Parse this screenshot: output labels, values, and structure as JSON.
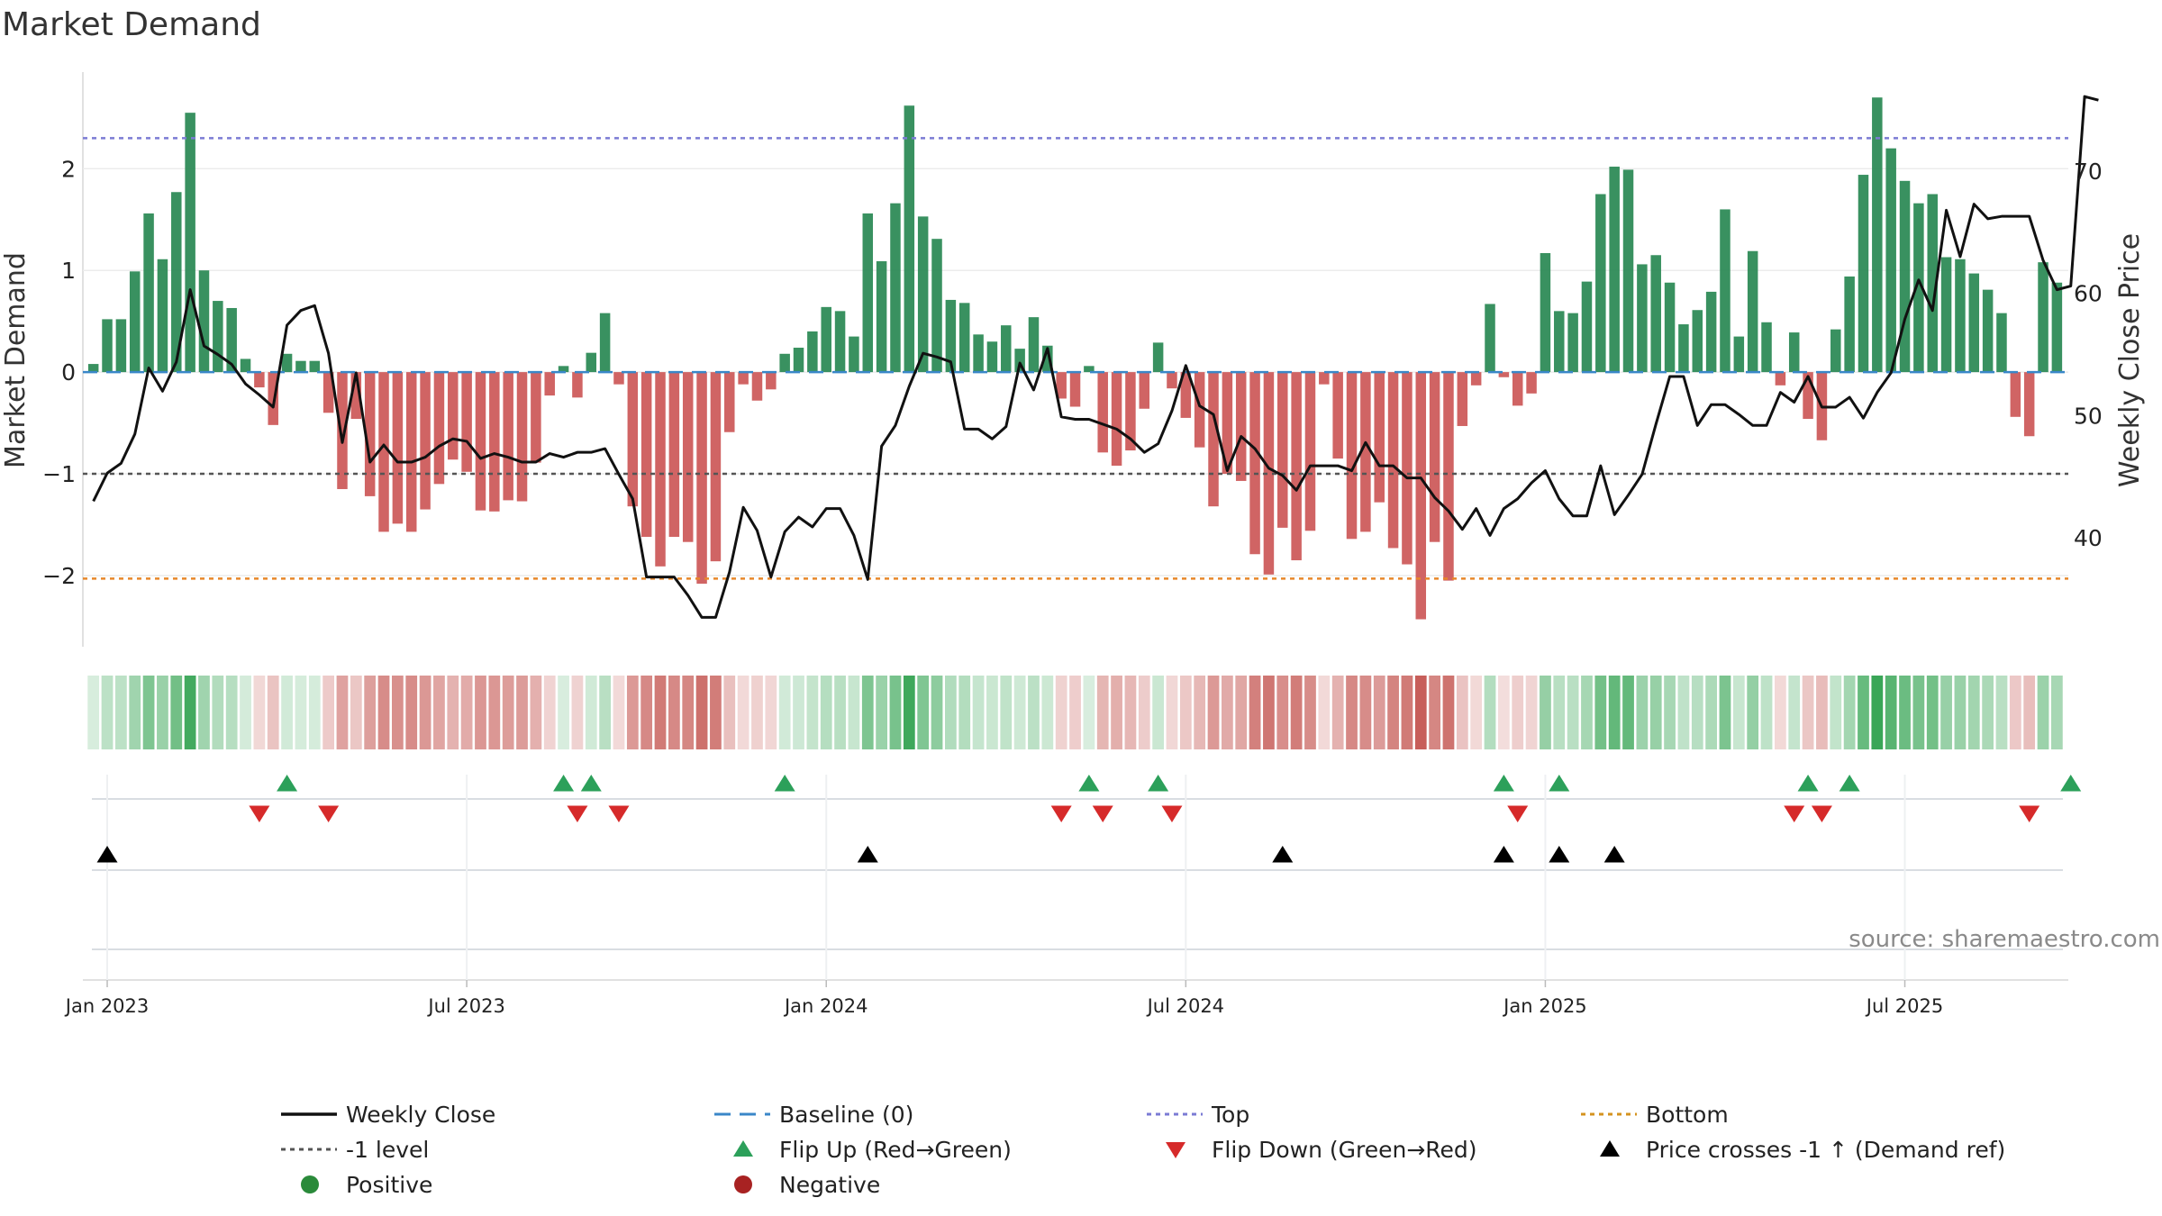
{
  "chart_data": {
    "type": "bar",
    "title": "Market Demand",
    "ylabel": "Market Demand",
    "y2label": "Weekly Close Price",
    "ylim": [
      -2.7,
      2.95
    ],
    "y2lim": [
      31.1,
      78.1
    ],
    "yticks": [
      2,
      1,
      0,
      -1,
      -2
    ],
    "yticklabels": [
      "2",
      "1",
      "0",
      "−1",
      "−2"
    ],
    "y2ticks": [
      70,
      60,
      50,
      40
    ],
    "y2ticklabels": [
      "70",
      "60",
      "50",
      "40"
    ],
    "xticklabels": [
      "Jan 2023",
      "Jul 2023",
      "Jan 2024",
      "Jul 2024",
      "Jan 2025",
      "Jul 2025"
    ],
    "xtick_week_index": [
      1.5,
      27.5,
      53.5,
      79.5,
      105.5,
      131.5
    ],
    "reference_lines": [
      {
        "name": "Top",
        "value": 2.3,
        "color": "#7b7bd4"
      },
      {
        "name": "-1 level",
        "value": -1,
        "color": "#555555"
      },
      {
        "name": "Bottom",
        "value": -2.03,
        "color": "#e8872a"
      },
      {
        "name": "Baseline (0)",
        "value": 0,
        "color": "#3a87c8"
      }
    ],
    "series": [
      {
        "name": "Market Demand",
        "values": [
          0.08,
          0.52,
          0.52,
          0.99,
          1.56,
          1.11,
          1.77,
          2.55,
          1.0,
          0.7,
          0.63,
          0.13,
          -0.15,
          -0.52,
          0.18,
          0.11,
          0.11,
          -0.4,
          -1.15,
          -0.46,
          -1.22,
          -1.57,
          -1.49,
          -1.57,
          -1.35,
          -1.1,
          -0.86,
          -0.98,
          -1.36,
          -1.37,
          -1.26,
          -1.27,
          -0.89,
          -0.23,
          0.06,
          -0.25,
          0.19,
          0.58,
          -0.12,
          -1.32,
          -1.62,
          -1.91,
          -1.62,
          -1.67,
          -2.08,
          -1.86,
          -0.59,
          -0.12,
          -0.28,
          -0.17,
          0.18,
          0.24,
          0.4,
          0.64,
          0.6,
          0.35,
          1.56,
          1.09,
          1.66,
          2.62,
          1.53,
          1.31,
          0.71,
          0.68,
          0.37,
          0.3,
          0.46,
          0.23,
          0.54,
          0.26,
          -0.26,
          -0.34,
          0.06,
          -0.79,
          -0.92,
          -0.77,
          -0.36,
          0.29,
          -0.16,
          -0.45,
          -0.74,
          -1.32,
          -1.0,
          -1.07,
          -1.79,
          -1.99,
          -1.53,
          -1.85,
          -1.56,
          -0.12,
          -0.85,
          -1.64,
          -1.57,
          -1.28,
          -1.73,
          -1.89,
          -2.43,
          -1.67,
          -2.05,
          -0.53,
          -0.13,
          0.67,
          -0.05,
          -0.33,
          -0.21,
          1.17,
          0.6,
          0.58,
          0.89,
          1.75,
          2.02,
          1.99,
          1.06,
          1.15,
          0.88,
          0.47,
          0.61,
          0.79,
          1.6,
          0.35,
          1.19,
          0.49,
          -0.13,
          0.39,
          -0.46,
          -0.67,
          0.42,
          0.94,
          1.94,
          2.7,
          2.2,
          1.88,
          1.66,
          1.75,
          1.13,
          1.11,
          0.97,
          0.81,
          0.58,
          -0.44,
          -0.63,
          1.08,
          0.88
        ]
      },
      {
        "name": "Weekly Close",
        "values": [
          43,
          45.3,
          46.1,
          48.5,
          53.9,
          52,
          54.4,
          60.3,
          55.7,
          55,
          54.2,
          52.6,
          51.7,
          50.7,
          57.4,
          58.6,
          59,
          55.1,
          47.8,
          53.5,
          46.2,
          47.6,
          46.2,
          46.2,
          46.6,
          47.5,
          48.1,
          47.9,
          46.5,
          46.9,
          46.6,
          46.2,
          46.2,
          46.9,
          46.6,
          47,
          47,
          47.3,
          45.2,
          43.2,
          36.8,
          36.8,
          36.8,
          35.3,
          33.5,
          33.5,
          37.2,
          42.5,
          40.6,
          36.8,
          40.5,
          41.7,
          40.9,
          42.4,
          42.4,
          40.2,
          36.6,
          47.5,
          49.2,
          52.4,
          55.1,
          54.8,
          54.4,
          48.9,
          48.9,
          48.1,
          49.1,
          54.3,
          52.1,
          55.5,
          49.9,
          49.7,
          49.7,
          49.3,
          48.9,
          48.1,
          47,
          47.7,
          50.4,
          54.1,
          50.8,
          50.1,
          45.5,
          48.3,
          47.3,
          45.7,
          45.1,
          43.9,
          45.9,
          45.9,
          45.9,
          45.5,
          47.8,
          45.9,
          45.9,
          44.9,
          44.9,
          43.3,
          42.2,
          40.7,
          42.4,
          40.2,
          42.4,
          43.2,
          44.5,
          45.5,
          43.2,
          41.8,
          41.8,
          45.9,
          41.9,
          43.5,
          45.2,
          49.3,
          53.2,
          53.2,
          49.2,
          50.9,
          50.9,
          50.1,
          49.2,
          49.2,
          51.9,
          51.1,
          53.2,
          50.7,
          50.7,
          51.5,
          49.8,
          51.9,
          53.5,
          57.9,
          61.1,
          58.6,
          66.8,
          63,
          67.3,
          66.1,
          66.3,
          66.3,
          66.3,
          62.7,
          60.3,
          60.6,
          76.1,
          75.8
        ]
      }
    ],
    "heat_strip": {
      "name": "Demand heat strip",
      "source": "Market Demand"
    },
    "flip_up_weeks": [
      14,
      34,
      36,
      50,
      72,
      77,
      102,
      106,
      124,
      127,
      143
    ],
    "flip_down_weeks": [
      12,
      17,
      35,
      38,
      70,
      73,
      78,
      103,
      123,
      125,
      140
    ],
    "price_cross_weeks": [
      1,
      56,
      86,
      102,
      106,
      110
    ],
    "source_text": "source: sharemaestro.com",
    "legend": [
      {
        "label": "Weekly Close",
        "kind": "line",
        "color": "#111111"
      },
      {
        "label": "Baseline (0)",
        "kind": "dash",
        "color": "#3a87c8"
      },
      {
        "label": "Top",
        "kind": "dot",
        "color": "#7b7bd4"
      },
      {
        "label": "Bottom",
        "kind": "dot",
        "color": "#d4931f"
      },
      {
        "label": "-1 level",
        "kind": "dot",
        "color": "#555555"
      },
      {
        "label": "Flip Up (Red→Green)",
        "kind": "tri-up",
        "color": "#2ca05a"
      },
      {
        "label": "Flip Down (Green→Red)",
        "kind": "tri-down",
        "color": "#d62a2a"
      },
      {
        "label": "Price crosses -1 ↑ (Demand ref)",
        "kind": "tri-up",
        "color": "#000000"
      },
      {
        "label": "Positive",
        "kind": "circle",
        "color": "#2a8a3a"
      },
      {
        "label": "Negative",
        "kind": "circle",
        "color": "#a82222"
      }
    ],
    "colors": {
      "positive": "#2e8b57",
      "negative": "#cd5c5c",
      "close": "#111111",
      "grid": "#ececec"
    }
  }
}
